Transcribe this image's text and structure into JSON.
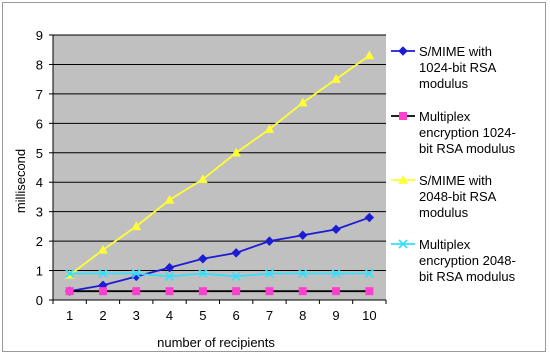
{
  "chart_data": {
    "type": "line",
    "title": "",
    "xlabel": "number of recipients",
    "ylabel": "millisecond",
    "categories": [
      "1",
      "2",
      "3",
      "4",
      "5",
      "6",
      "7",
      "8",
      "9",
      "10"
    ],
    "ylim": [
      0,
      9
    ],
    "yticks": [
      "0",
      "1",
      "2",
      "3",
      "4",
      "5",
      "6",
      "7",
      "8",
      "9"
    ],
    "grid": "horizontal",
    "plot_background": "#c0c0c0",
    "legend_position": "right",
    "series": [
      {
        "name": "S/MIME with 1024-bit RSA modulus",
        "legend_lines": [
          "S/MIME with",
          "1024-bit RSA",
          "modulus"
        ],
        "color": "#1c1cd6",
        "marker": "diamond",
        "values": [
          0.3,
          0.5,
          0.8,
          1.1,
          1.4,
          1.6,
          2.0,
          2.2,
          2.4,
          2.8
        ]
      },
      {
        "name": "Multiplex encryption 1024-bit RSA modulus",
        "legend_lines": [
          "Multiplex",
          "encryption 1024-",
          "bit RSA modulus"
        ],
        "color": "#000000",
        "marker_color": "#ff3fcf",
        "marker": "square",
        "values": [
          0.3,
          0.3,
          0.3,
          0.3,
          0.3,
          0.3,
          0.3,
          0.3,
          0.3,
          0.3
        ]
      },
      {
        "name": "S/MIME with 2048-bit RSA modulus",
        "legend_lines": [
          "S/MIME with",
          "2048-bit RSA",
          "modulus"
        ],
        "color": "#ffff33",
        "marker": "triangle",
        "values": [
          0.85,
          1.7,
          2.5,
          3.4,
          4.1,
          5.0,
          5.8,
          6.7,
          7.5,
          8.3
        ]
      },
      {
        "name": "Multiplex encryption 2048-bit RSA modulus",
        "legend_lines": [
          "Multiplex",
          "encryption 2048-",
          "bit RSA modulus"
        ],
        "color": "#33e0ff",
        "marker": "x",
        "values": [
          0.9,
          0.9,
          0.9,
          0.8,
          0.9,
          0.8,
          0.9,
          0.9,
          0.9,
          0.9
        ]
      }
    ]
  }
}
